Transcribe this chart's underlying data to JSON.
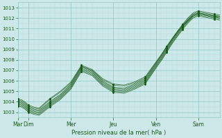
{
  "title": "",
  "xlabel": "Pression niveau de la mer( hPa )",
  "ylim": [
    1002.5,
    1013.5
  ],
  "yticks": [
    1003,
    1004,
    1005,
    1006,
    1007,
    1008,
    1009,
    1010,
    1011,
    1012,
    1013
  ],
  "day_labels": [
    "Mar",
    "Dim",
    "Mer",
    "Jeu",
    "Ven",
    "Sam"
  ],
  "day_positions": [
    0,
    12,
    60,
    108,
    156,
    204
  ],
  "xlim": [
    0,
    228
  ],
  "bg_color": "#cce8e8",
  "grid_major_color": "#99cccc",
  "grid_minor_color": "#b8dddd",
  "line_color": "#1a5c1a",
  "text_color": "#1a5c1a",
  "tick_color": "#336633",
  "figsize": [
    3.2,
    2.0
  ],
  "dpi": 100,
  "series": [
    {
      "x": [
        0,
        4,
        8,
        12,
        18,
        24,
        36,
        48,
        60,
        72,
        84,
        96,
        108,
        120,
        132,
        144,
        156,
        162,
        168,
        174,
        180,
        186,
        192,
        198,
        204,
        210,
        216,
        222,
        228
      ],
      "y": [
        1003.9,
        1003.8,
        1003.6,
        1003.3,
        1003.1,
        1003.0,
        1003.8,
        1004.5,
        1005.5,
        1007.2,
        1006.8,
        1005.8,
        1005.2,
        1005.1,
        1005.5,
        1006.0,
        1007.5,
        1008.2,
        1009.0,
        1009.8,
        1010.5,
        1011.2,
        1011.8,
        1012.3,
        1012.5,
        1012.4,
        1012.3,
        1012.2,
        1012.1
      ]
    },
    {
      "x": [
        0,
        4,
        8,
        12,
        18,
        24,
        36,
        48,
        60,
        72,
        84,
        96,
        108,
        120,
        132,
        144,
        156,
        162,
        168,
        174,
        180,
        186,
        192,
        198,
        204,
        210,
        216,
        222,
        228
      ],
      "y": [
        1004.0,
        1003.9,
        1003.7,
        1003.4,
        1003.2,
        1003.1,
        1003.9,
        1004.6,
        1005.6,
        1007.3,
        1006.9,
        1005.9,
        1005.3,
        1005.2,
        1005.6,
        1006.1,
        1007.6,
        1008.3,
        1009.1,
        1009.9,
        1010.6,
        1011.3,
        1011.9,
        1012.4,
        1012.6,
        1012.5,
        1012.4,
        1012.3,
        1012.2
      ]
    },
    {
      "x": [
        0,
        4,
        8,
        12,
        18,
        24,
        36,
        48,
        60,
        72,
        84,
        96,
        108,
        120,
        132,
        144,
        156,
        162,
        168,
        174,
        180,
        186,
        192,
        198,
        204,
        210,
        216,
        222,
        228
      ],
      "y": [
        1003.8,
        1003.7,
        1003.5,
        1003.2,
        1003.0,
        1002.9,
        1003.7,
        1004.4,
        1005.4,
        1007.1,
        1006.7,
        1005.7,
        1005.1,
        1005.0,
        1005.4,
        1005.9,
        1007.4,
        1008.1,
        1008.9,
        1009.7,
        1010.4,
        1011.1,
        1011.7,
        1012.2,
        1012.4,
        1012.3,
        1012.2,
        1012.1,
        1012.0
      ]
    },
    {
      "x": [
        0,
        4,
        8,
        12,
        18,
        24,
        36,
        48,
        60,
        72,
        84,
        96,
        108,
        120,
        132,
        144,
        156,
        162,
        168,
        174,
        180,
        186,
        192,
        198,
        204,
        210,
        216,
        222,
        228
      ],
      "y": [
        1004.1,
        1004.0,
        1003.8,
        1003.5,
        1003.3,
        1003.2,
        1004.0,
        1004.7,
        1005.7,
        1007.4,
        1007.0,
        1006.0,
        1005.4,
        1005.3,
        1005.7,
        1006.2,
        1007.7,
        1008.4,
        1009.2,
        1010.0,
        1010.7,
        1011.4,
        1012.0,
        1012.5,
        1012.7,
        1012.6,
        1012.5,
        1012.4,
        1012.3
      ]
    },
    {
      "x": [
        0,
        4,
        8,
        12,
        18,
        24,
        36,
        48,
        60,
        72,
        84,
        96,
        108,
        120,
        132,
        144,
        156,
        162,
        168,
        174,
        180,
        186,
        192,
        198,
        204,
        210,
        216,
        222,
        228
      ],
      "y": [
        1003.7,
        1003.6,
        1003.4,
        1003.1,
        1002.9,
        1002.8,
        1003.6,
        1004.3,
        1005.3,
        1007.0,
        1006.6,
        1005.6,
        1005.0,
        1004.9,
        1005.3,
        1005.8,
        1007.3,
        1008.0,
        1008.8,
        1009.6,
        1010.3,
        1011.0,
        1011.6,
        1012.1,
        1012.3,
        1012.2,
        1012.1,
        1012.0,
        1011.9
      ]
    },
    {
      "x": [
        0,
        4,
        8,
        12,
        18,
        24,
        36,
        48,
        60,
        72,
        84,
        96,
        108,
        120,
        132,
        144,
        156,
        162,
        168,
        174,
        180,
        186,
        192,
        198,
        204,
        210,
        216,
        222,
        228
      ],
      "y": [
        1004.2,
        1004.1,
        1003.9,
        1003.6,
        1003.4,
        1003.3,
        1004.2,
        1004.9,
        1005.8,
        1007.4,
        1007.0,
        1006.1,
        1005.6,
        1005.5,
        1005.8,
        1006.3,
        1007.7,
        1008.4,
        1009.2,
        1009.9,
        1010.6,
        1011.2,
        1011.7,
        1012.2,
        1012.4,
        1012.3,
        1012.2,
        1012.1,
        1012.1
      ]
    },
    {
      "x": [
        0,
        4,
        8,
        12,
        18,
        24,
        36,
        48,
        60,
        72,
        84,
        96,
        108,
        120,
        132,
        144,
        156,
        162,
        168,
        174,
        180,
        186,
        192,
        198,
        204,
        210,
        216,
        222,
        228
      ],
      "y": [
        1003.6,
        1003.5,
        1003.3,
        1003.0,
        1002.8,
        1002.7,
        1003.5,
        1004.2,
        1005.2,
        1006.9,
        1006.5,
        1005.5,
        1004.9,
        1004.8,
        1005.2,
        1005.7,
        1007.2,
        1007.9,
        1008.7,
        1009.5,
        1010.2,
        1010.9,
        1011.5,
        1012.0,
        1012.2,
        1012.1,
        1012.0,
        1011.9,
        1011.8
      ]
    },
    {
      "x": [
        0,
        4,
        8,
        12,
        18,
        24,
        36,
        48,
        60,
        72,
        84,
        96,
        108,
        120,
        132,
        144,
        156,
        162,
        168,
        174,
        180,
        186,
        192,
        198,
        204,
        210,
        216,
        222,
        228
      ],
      "y": [
        1004.3,
        1004.2,
        1004.0,
        1003.7,
        1003.5,
        1003.4,
        1004.3,
        1005.0,
        1005.9,
        1007.5,
        1007.1,
        1006.2,
        1005.7,
        1005.6,
        1005.9,
        1006.4,
        1007.8,
        1008.5,
        1009.3,
        1010.0,
        1010.7,
        1011.3,
        1011.8,
        1012.3,
        1012.5,
        1012.4,
        1012.3,
        1012.2,
        1012.1
      ]
    }
  ]
}
